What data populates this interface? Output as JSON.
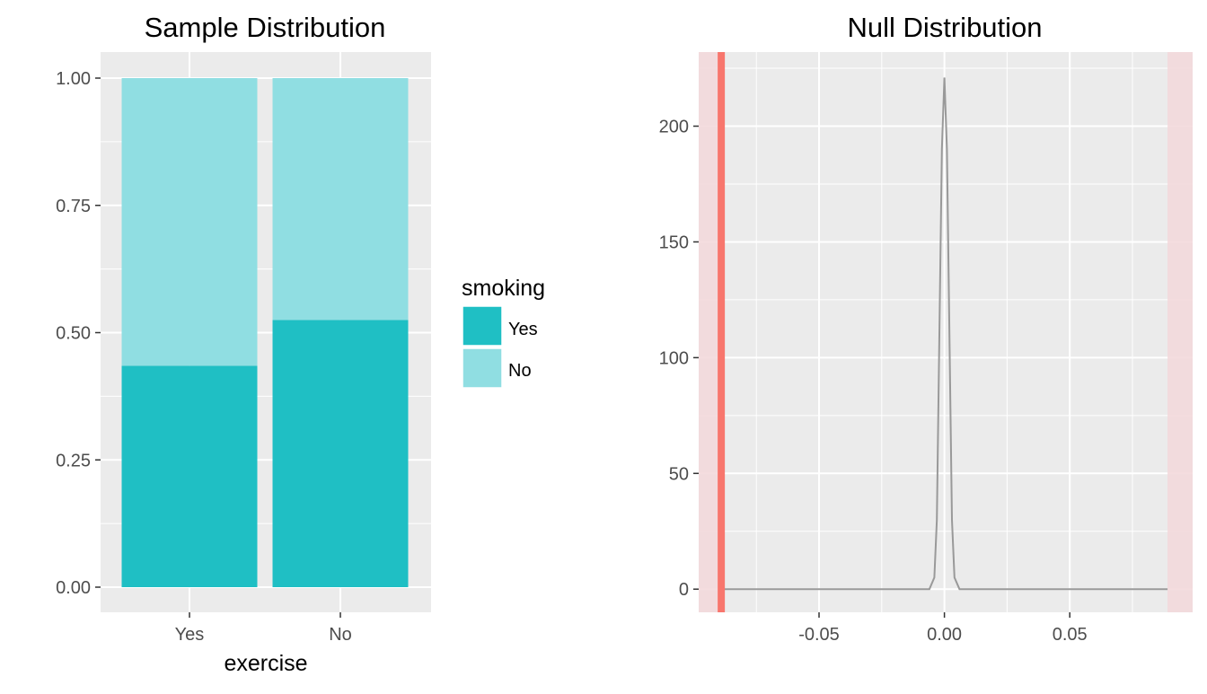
{
  "chart_data": [
    {
      "type": "bar",
      "title": "Sample Distribution",
      "xlabel": "exercise",
      "ylabel": "",
      "categories": [
        "Yes",
        "No"
      ],
      "stacked": true,
      "position": "fill",
      "series": [
        {
          "name": "Yes",
          "values": [
            0.435,
            0.525
          ]
        },
        {
          "name": "No",
          "values": [
            0.565,
            0.475
          ]
        }
      ],
      "ylim": [
        0,
        1
      ],
      "yticks": [
        0,
        0.25,
        0.5,
        0.75,
        1
      ],
      "ytick_labels": [
        "0.00",
        "0.25",
        "0.50",
        "0.75",
        "1.00"
      ],
      "grid": true,
      "legend": {
        "title": "smoking",
        "position": "right",
        "entries": [
          "Yes",
          "No"
        ]
      },
      "colors": {
        "Yes": "#1fbfc4",
        "No": "#90dee2",
        "panel": "#ebebeb",
        "grid": "#ffffff"
      }
    },
    {
      "type": "line",
      "title": "Null Distribution",
      "xlabel": "",
      "ylabel": "",
      "x": [
        -0.088,
        -0.006,
        -0.004,
        -0.003,
        -0.002,
        -0.001,
        0,
        0.001,
        0.002,
        0.003,
        0.004,
        0.006,
        0.089
      ],
      "y": [
        0,
        0,
        5,
        30,
        110,
        190,
        221,
        190,
        110,
        30,
        5,
        0,
        0
      ],
      "xlim": [
        -0.098,
        0.099
      ],
      "ylim": [
        -10,
        232
      ],
      "xticks": [
        -0.05,
        0,
        0.05
      ],
      "xtick_labels": [
        "-0.05",
        "0.00",
        "0.05"
      ],
      "yticks": [
        0,
        50,
        100,
        150,
        200
      ],
      "ytick_labels": [
        "0",
        "50",
        "100",
        "150",
        "200"
      ],
      "observed_statistic": -0.089,
      "shade_left": [
        -0.098,
        -0.089
      ],
      "shade_right": [
        0.089,
        0.099
      ],
      "grid": true,
      "colors": {
        "line": "#999999",
        "observed": "#f8766d",
        "shade": "#f3d9db",
        "panel": "#ebebeb",
        "grid": "#ffffff"
      }
    }
  ]
}
